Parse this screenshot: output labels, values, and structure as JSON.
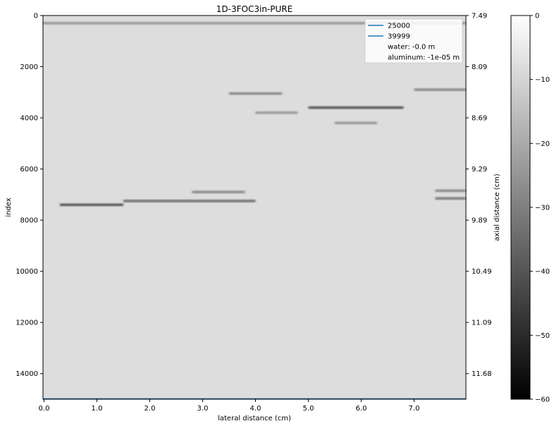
{
  "chart_data": {
    "type": "heatmap",
    "title": "1D-3FOC3in-PURE",
    "xlabel": "lateral distance (cm)",
    "ylabel": "index",
    "ylabel_right": "axial distance (cm)",
    "x_ticks": [
      0.0,
      1.0,
      2.0,
      3.0,
      4.0,
      5.0,
      6.0,
      7.0
    ],
    "x_tick_labels": [
      "0.0",
      "1.0",
      "2.0",
      "3.0",
      "4.0",
      "5.0",
      "6.0",
      "7.0"
    ],
    "xlim": [
      -0.02,
      7.98
    ],
    "y_ticks": [
      0,
      2000,
      4000,
      6000,
      8000,
      10000,
      12000,
      14000
    ],
    "y_tick_labels": [
      "0",
      "2000",
      "4000",
      "6000",
      "8000",
      "10000",
      "12000",
      "14000"
    ],
    "ylim": [
      15000,
      0
    ],
    "y_right_ticks": [
      0,
      2000,
      4000,
      6000,
      8000,
      10000,
      12000,
      14000
    ],
    "y_right_tick_labels": [
      "7.49",
      "8.09",
      "8.69",
      "9.29",
      "9.89",
      "10.49",
      "11.09",
      "11.68"
    ],
    "colorbar": {
      "ticks": [
        0,
        -10,
        -20,
        -30,
        -40,
        -50,
        -60
      ],
      "tick_labels": [
        "0",
        "−10",
        "−20",
        "−30",
        "−40",
        "−50",
        "−60"
      ],
      "range": [
        -60,
        0
      ],
      "colormap": "gray"
    },
    "legend": {
      "placement": "top-right",
      "entries": [
        {
          "label": "25000",
          "color": "#1f77b4",
          "line": true
        },
        {
          "label": "39999",
          "color": "#1f77b4",
          "line": true
        },
        {
          "label": "water: -0.0 m",
          "line": false
        },
        {
          "label": "aluminum: -1e-05 m",
          "line": false
        }
      ]
    },
    "lines": [
      {
        "name": "25000",
        "y": 25000,
        "color": "#1f77b4"
      },
      {
        "name": "39999",
        "y": 39999,
        "color": "#1f77b4"
      }
    ],
    "background_level": -8,
    "echoes": [
      {
        "x": [
          3.5,
          4.5
        ],
        "y": 3050,
        "level": -25
      },
      {
        "x": [
          5.0,
          6.8
        ],
        "y": 3600,
        "level": -35
      },
      {
        "x": [
          4.0,
          4.8
        ],
        "y": 3800,
        "level": -22
      },
      {
        "x": [
          5.5,
          6.3
        ],
        "y": 4200,
        "level": -22
      },
      {
        "x": [
          7.0,
          7.98
        ],
        "y": 2900,
        "level": -25
      },
      {
        "x": [
          0.3,
          1.5
        ],
        "y": 7400,
        "level": -35
      },
      {
        "x": [
          1.5,
          4.0
        ],
        "y": 7250,
        "level": -30
      },
      {
        "x": [
          2.8,
          3.8
        ],
        "y": 6900,
        "level": -25
      },
      {
        "x": [
          7.4,
          7.98
        ],
        "y": 6850,
        "level": -25
      },
      {
        "x": [
          7.4,
          7.98
        ],
        "y": 7150,
        "level": -28
      }
    ],
    "surface_echo": {
      "y": 300,
      "level": -22
    }
  }
}
